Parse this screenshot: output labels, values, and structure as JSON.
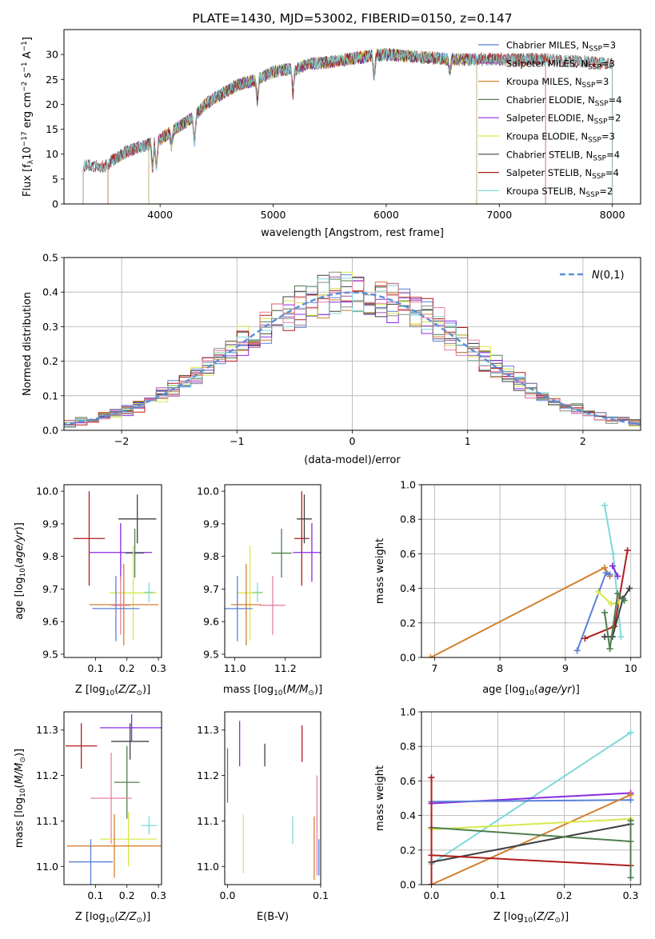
{
  "chart_data": [
    {
      "type": "line",
      "title": "PLATE=1430, MJD=53002, FIBERID=0150, z=0.147",
      "xlabel": "wavelength [Angstrom, rest frame]",
      "ylabel": "Flux [f_λ10^-17 erg cm^-2 s^-1 A^-1]",
      "xlim": [
        3150,
        8250
      ],
      "ylim": [
        0,
        35
      ],
      "xticks": [
        "4000",
        "5000",
        "6000",
        "7000",
        "8000"
      ],
      "yticks": [
        "0",
        "5",
        "10",
        "15",
        "20",
        "25",
        "30"
      ],
      "legend_position": "top-right",
      "series": [
        {
          "name": "Chabrier MILES, N_SSP=3",
          "color": "#5b7fd6",
          "range": [
            3540,
            7410
          ]
        },
        {
          "name": "Salpeter MILES, N_SSP=3",
          "color": "#a74ca9",
          "range": [
            3540,
            7410
          ]
        },
        {
          "name": "Kroupa MILES, N_SSP=3",
          "color": "#d4802f",
          "range": [
            3540,
            7410
          ]
        },
        {
          "name": "Chabrier ELODIE, N_SSP=4",
          "color": "#4d7f4d",
          "range": [
            3900,
            6800
          ]
        },
        {
          "name": "Salpeter ELODIE, N_SSP=2",
          "color": "#8a2be2",
          "range": [
            3900,
            6800
          ]
        },
        {
          "name": "Kroupa ELODIE, N_SSP=3",
          "color": "#d8e84c",
          "range": [
            3900,
            6800
          ]
        },
        {
          "name": "Chabrier STELIB, N_SSP=4",
          "color": "#404040",
          "range": [
            3320,
            8000
          ]
        },
        {
          "name": "Salpeter STELIB, N_SSP=4",
          "color": "#b01c1c",
          "range": [
            3320,
            8000
          ]
        },
        {
          "name": "Kroupa STELIB, N_SSP=2",
          "color": "#7fd8d8",
          "range": [
            3320,
            8000
          ]
        }
      ],
      "continuum": [
        [
          3320,
          7.8
        ],
        [
          3500,
          7.5
        ],
        [
          3700,
          10.5
        ],
        [
          3900,
          12
        ],
        [
          4000,
          13
        ],
        [
          4100,
          14.5
        ],
        [
          4200,
          16
        ],
        [
          4300,
          17.5
        ],
        [
          4400,
          20
        ],
        [
          4500,
          21.5
        ],
        [
          4700,
          24
        ],
        [
          4860,
          25
        ],
        [
          5000,
          26.5
        ],
        [
          5100,
          27
        ],
        [
          5200,
          27
        ],
        [
          5300,
          28
        ],
        [
          5500,
          28.5
        ],
        [
          5800,
          29.5
        ],
        [
          6000,
          30
        ],
        [
          6300,
          29.5
        ],
        [
          6600,
          29
        ],
        [
          7000,
          29
        ],
        [
          7400,
          29
        ],
        [
          7800,
          28.5
        ],
        [
          8000,
          28
        ]
      ],
      "absorption_lines": [
        [
          3933,
          0.55
        ],
        [
          3968,
          0.55
        ],
        [
          4101,
          0.8
        ],
        [
          4305,
          0.7
        ],
        [
          4861,
          0.82
        ],
        [
          5175,
          0.82
        ],
        [
          5893,
          0.85
        ],
        [
          6563,
          0.9
        ]
      ]
    },
    {
      "type": "histogram",
      "xlabel": "(data-model)/error",
      "ylabel": "Normed distribution",
      "xlim": [
        -2.5,
        2.5
      ],
      "ylim": [
        0,
        0.5
      ],
      "xticks": [
        "−2",
        "−1",
        "0",
        "1",
        "2"
      ],
      "yticks": [
        "0.0",
        "0.1",
        "0.2",
        "0.3",
        "0.4",
        "0.5"
      ],
      "bin_width": 0.1,
      "reference": {
        "name": "N(0,1)",
        "color": "#5b8fd8",
        "style": "dashed"
      },
      "series_colors": [
        "#5b7fd6",
        "#a74ca9",
        "#d4802f",
        "#4d7f4d",
        "#8a2be2",
        "#d8e84c",
        "#404040",
        "#b01c1c",
        "#7fd8d8",
        "#e87fa5",
        "#888888"
      ]
    },
    {
      "type": "errorbar",
      "xlabel": "Z [log10(Z/Z⊙)]",
      "ylabel": "age  [log10(age/yr)]",
      "xlim": [
        0.0,
        0.31
      ],
      "ylim": [
        9.49,
        10.02
      ],
      "xticks": [
        "0.1",
        "0.2",
        "0.3"
      ],
      "yticks": [
        "9.5",
        "9.6",
        "9.7",
        "9.8",
        "9.9",
        "10.0"
      ],
      "points": [
        {
          "color": "#b01c1c",
          "x": 0.08,
          "xerr": 0.05,
          "y": 9.855,
          "yerr": 0.145
        },
        {
          "color": "#404040",
          "x": 0.233,
          "xerr": 0.06,
          "y": 9.915,
          "yerr": 0.075
        },
        {
          "color": "#8a2be2",
          "x": 0.18,
          "xerr": 0.1,
          "y": 9.812,
          "yerr": 0.09
        },
        {
          "color": "#4d7f4d",
          "x": 0.225,
          "xerr": 0.03,
          "y": 9.81,
          "yerr": 0.075
        },
        {
          "color": "#d8e84c",
          "x": 0.22,
          "xerr": 0.075,
          "y": 9.688,
          "yerr": 0.145
        },
        {
          "color": "#7fd8d8",
          "x": 0.27,
          "xerr": 0.015,
          "y": 9.69,
          "yerr": 0.03
        },
        {
          "color": "#d4802f",
          "x": 0.19,
          "xerr": 0.11,
          "y": 9.652,
          "yerr": 0.125
        },
        {
          "color": "#e87fa5",
          "x": 0.18,
          "xerr": 0.03,
          "y": 9.65,
          "yerr": 0.09
        },
        {
          "color": "#5b7fd6",
          "x": 0.165,
          "xerr": 0.075,
          "y": 9.64,
          "yerr": 0.1
        }
      ]
    },
    {
      "type": "errorbar",
      "xlabel": "mass [log10(M/M⊙)]",
      "ylabel": "",
      "xlim": [
        10.96,
        11.34
      ],
      "ylim": [
        9.49,
        10.02
      ],
      "xticks": [
        "11.0",
        "11.2"
      ],
      "yticks": [
        "9.5",
        "9.6",
        "9.7",
        "9.8",
        "9.9",
        "10.0"
      ],
      "points": [
        {
          "color": "#b01c1c",
          "x": 11.265,
          "xerr": 0.03,
          "y": 9.855,
          "yerr": 0.145
        },
        {
          "color": "#404040",
          "x": 11.275,
          "xerr": 0.03,
          "y": 9.915,
          "yerr": 0.075
        },
        {
          "color": "#8a2be2",
          "x": 11.305,
          "xerr": 0.075,
          "y": 9.812,
          "yerr": 0.09
        },
        {
          "color": "#4d7f4d",
          "x": 11.185,
          "xerr": 0.04,
          "y": 9.81,
          "yerr": 0.075
        },
        {
          "color": "#d8e84c",
          "x": 11.06,
          "xerr": 0.05,
          "y": 9.688,
          "yerr": 0.145
        },
        {
          "color": "#7fd8d8",
          "x": 11.09,
          "xerr": 0.02,
          "y": 9.69,
          "yerr": 0.03
        },
        {
          "color": "#d4802f",
          "x": 11.045,
          "xerr": 0.06,
          "y": 9.652,
          "yerr": 0.125
        },
        {
          "color": "#e87fa5",
          "x": 11.15,
          "xerr": 0.05,
          "y": 9.65,
          "yerr": 0.09
        },
        {
          "color": "#5b7fd6",
          "x": 11.01,
          "xerr": 0.06,
          "y": 9.64,
          "yerr": 0.1
        }
      ]
    },
    {
      "type": "line",
      "xlabel": "age  [log10(age/yr)]",
      "ylabel": "mass weight",
      "xlim": [
        6.8,
        10.15
      ],
      "ylim": [
        0,
        1.0
      ],
      "xticks": [
        "7",
        "8",
        "9",
        "10"
      ],
      "yticks": [
        "0.0",
        "0.2",
        "0.4",
        "0.6",
        "0.8",
        "1.0"
      ],
      "series": [
        {
          "color": "#d4802f",
          "points": [
            [
              6.94,
              0.0
            ],
            [
              9.6,
              0.52
            ],
            [
              9.68,
              0.47
            ]
          ]
        },
        {
          "color": "#5b7fd6",
          "points": [
            [
              9.18,
              0.04
            ],
            [
              9.62,
              0.49
            ],
            [
              9.68,
              0.48
            ]
          ]
        },
        {
          "color": "#7fd8d8",
          "points": [
            [
              9.6,
              0.88
            ],
            [
              9.73,
              0.6
            ],
            [
              9.85,
              0.12
            ]
          ]
        },
        {
          "color": "#8a2be2",
          "points": [
            [
              9.72,
              0.53
            ],
            [
              9.8,
              0.47
            ]
          ]
        },
        {
          "color": "#b01c1c",
          "points": [
            [
              9.3,
              0.11
            ],
            [
              9.75,
              0.18
            ],
            [
              9.95,
              0.62
            ]
          ]
        },
        {
          "color": "#d8e84c",
          "points": [
            [
              9.5,
              0.38
            ],
            [
              9.7,
              0.31
            ],
            [
              9.82,
              0.32
            ]
          ]
        },
        {
          "color": "#404040",
          "points": [
            [
              9.6,
              0.12
            ],
            [
              9.72,
              0.12
            ],
            [
              9.88,
              0.34
            ],
            [
              9.98,
              0.4
            ]
          ]
        },
        {
          "color": "#4d7f4d",
          "points": [
            [
              9.6,
              0.26
            ],
            [
              9.68,
              0.05
            ],
            [
              9.8,
              0.37
            ],
            [
              9.9,
              0.33
            ]
          ]
        }
      ]
    },
    {
      "type": "errorbar",
      "xlabel": "Z [log10(Z/Z⊙)]",
      "ylabel": "mass [log10(M/M⊙)]",
      "xlim": [
        0.0,
        0.31
      ],
      "ylim": [
        10.96,
        11.34
      ],
      "xticks": [
        "0.1",
        "0.2",
        "0.3"
      ],
      "yticks": [
        "11.0",
        "11.1",
        "11.2",
        "11.3"
      ],
      "points": [
        {
          "color": "#b01c1c",
          "x": 0.055,
          "xerr": 0.05,
          "y": 11.265,
          "yerr": 0.05
        },
        {
          "color": "#404040",
          "x": 0.21,
          "xerr": 0.06,
          "y": 11.275,
          "yerr": 0.04
        },
        {
          "color": "#8a2be2",
          "x": 0.215,
          "xerr": 0.1,
          "y": 11.305,
          "yerr": 0.03
        },
        {
          "color": "#4d7f4d",
          "x": 0.2,
          "xerr": 0.04,
          "y": 11.185,
          "yerr": 0.08
        },
        {
          "color": "#e87fa5",
          "x": 0.15,
          "xerr": 0.065,
          "y": 11.15,
          "yerr": 0.1
        },
        {
          "color": "#7fd8d8",
          "x": 0.27,
          "xerr": 0.025,
          "y": 11.09,
          "yerr": 0.02
        },
        {
          "color": "#d8e84c",
          "x": 0.205,
          "xerr": 0.09,
          "y": 11.06,
          "yerr": 0.06
        },
        {
          "color": "#d4802f",
          "x": 0.16,
          "xerr": 0.15,
          "y": 11.045,
          "yerr": 0.07
        },
        {
          "color": "#5b7fd6",
          "x": 0.085,
          "xerr": 0.07,
          "y": 11.01,
          "yerr": 0.05
        }
      ]
    },
    {
      "type": "errorbar",
      "xlabel": "E(B-V)",
      "ylabel": "",
      "xlim": [
        -0.003,
        0.1
      ],
      "ylim": [
        10.96,
        11.34
      ],
      "xticks": [
        "0.0",
        "0.1"
      ],
      "yticks": [
        "11.0",
        "11.1",
        "11.2",
        "11.3"
      ],
      "points": [
        {
          "color": "#4d7f4d",
          "x": 0.0,
          "xerr": 0,
          "y": 11.2,
          "yerr": 0.06
        },
        {
          "color": "#8a2be2",
          "x": 0.013,
          "xerr": 0,
          "y": 11.27,
          "yerr": 0.05
        },
        {
          "color": "#d8e84c",
          "x": 0.017,
          "xerr": 0,
          "y": 11.05,
          "yerr": 0.065
        },
        {
          "color": "#404040",
          "x": 0.04,
          "xerr": 0,
          "y": 11.245,
          "yerr": 0.025
        },
        {
          "color": "#7fd8d8",
          "x": 0.07,
          "xerr": 0,
          "y": 11.08,
          "yerr": 0.03
        },
        {
          "color": "#b01c1c",
          "x": 0.08,
          "xerr": 0,
          "y": 11.27,
          "yerr": 0.04
        },
        {
          "color": "#d4802f",
          "x": 0.093,
          "xerr": 0,
          "y": 11.04,
          "yerr": 0.07
        },
        {
          "color": "#e87fa5",
          "x": 0.096,
          "xerr": 0,
          "y": 11.09,
          "yerr": 0.11
        },
        {
          "color": "#5b7fd6",
          "x": 0.098,
          "xerr": 0,
          "y": 11.02,
          "yerr": 0.04
        }
      ]
    },
    {
      "type": "line",
      "xlabel": "Z [log10(Z/Z⊙)]",
      "ylabel": "mass weight",
      "xlim": [
        -0.015,
        0.315
      ],
      "ylim": [
        0,
        1.0
      ],
      "xticks": [
        "0.0",
        "0.1",
        "0.2",
        "0.3"
      ],
      "yticks": [
        "0.0",
        "0.2",
        "0.4",
        "0.6",
        "0.8",
        "1.0"
      ],
      "series": [
        {
          "color": "#7fd8d8",
          "points": [
            [
              0.0,
              0.12
            ],
            [
              0.3,
              0.88
            ]
          ]
        },
        {
          "color": "#8a2be2",
          "points": [
            [
              0.0,
              0.47
            ],
            [
              0.3,
              0.53
            ]
          ]
        },
        {
          "color": "#5b7fd6",
          "points": [
            [
              0.0,
              0.48
            ],
            [
              0.3,
              0.49
            ]
          ]
        },
        {
          "color": "#d4802f",
          "points": [
            [
              0.0,
              0.0
            ],
            [
              0.3,
              0.52
            ]
          ]
        },
        {
          "color": "#d8e84c",
          "points": [
            [
              0.0,
              0.32
            ],
            [
              0.3,
              0.38
            ]
          ]
        },
        {
          "color": "#404040",
          "points": [
            [
              0.0,
              0.13
            ],
            [
              0.3,
              0.35
            ]
          ]
        },
        {
          "color": "#4d7f4d",
          "points": [
            [
              0.0,
              0.33
            ],
            [
              0.3,
              0.25
            ]
          ]
        },
        {
          "color": "#b01c1c",
          "points": [
            [
              0.0,
              0.17
            ],
            [
              0.3,
              0.11
            ]
          ]
        },
        {
          "color": "#b01c1c",
          "points": [
            [
              0.0,
              0.62
            ],
            [
              0.0,
              0.0
            ]
          ]
        },
        {
          "color": "#4d7f4d",
          "points": [
            [
              0.3,
              0.37
            ],
            [
              0.3,
              0.04
            ]
          ]
        }
      ]
    }
  ]
}
